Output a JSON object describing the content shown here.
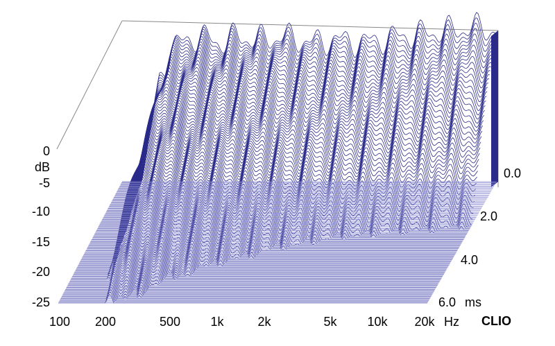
{
  "chart_data": {
    "type": "waterfall",
    "title": "",
    "brand": "CLIO",
    "colors": {
      "trace": "#2a2a8a",
      "floor": "#8c8cd2",
      "frame": "#888888"
    },
    "z_axis": {
      "unit": "dB",
      "ticks": [
        "0",
        "-5",
        "-10",
        "-15",
        "-20",
        "-25"
      ],
      "values": [
        0,
        -5,
        -10,
        -15,
        -20,
        -25
      ],
      "range": [
        -25,
        0
      ]
    },
    "x_axis": {
      "unit": "Hz",
      "scale": "log",
      "range": [
        100,
        20000
      ],
      "ticks": [
        "100",
        "200",
        "500",
        "1k",
        "2k",
        "5k",
        "10k",
        "20k"
      ],
      "values": [
        100,
        200,
        500,
        1000,
        2000,
        5000,
        10000,
        20000
      ]
    },
    "time_axis": {
      "unit": "ms",
      "range": [
        0,
        6
      ],
      "ticks": [
        "0.0",
        "2.0",
        "4.0",
        "6.0"
      ],
      "values": [
        0,
        2,
        4,
        6
      ]
    },
    "slices": 110,
    "initial_response": [
      {
        "f": 100,
        "db": -30
      },
      {
        "f": 140,
        "db": -22
      },
      {
        "f": 170,
        "db": -8
      },
      {
        "f": 200,
        "db": -3
      },
      {
        "f": 250,
        "db": -1.5
      },
      {
        "f": 300,
        "db": -1
      },
      {
        "f": 400,
        "db": -2
      },
      {
        "f": 500,
        "db": -1
      },
      {
        "f": 700,
        "db": -1.5
      },
      {
        "f": 1000,
        "db": -1
      },
      {
        "f": 1500,
        "db": -2
      },
      {
        "f": 2000,
        "db": -1.5
      },
      {
        "f": 3000,
        "db": -2
      },
      {
        "f": 5000,
        "db": -1
      },
      {
        "f": 7000,
        "db": -0.5
      },
      {
        "f": 10000,
        "db": 0
      },
      {
        "f": 15000,
        "db": 0.5
      },
      {
        "f": 20000,
        "db": 0
      }
    ]
  }
}
